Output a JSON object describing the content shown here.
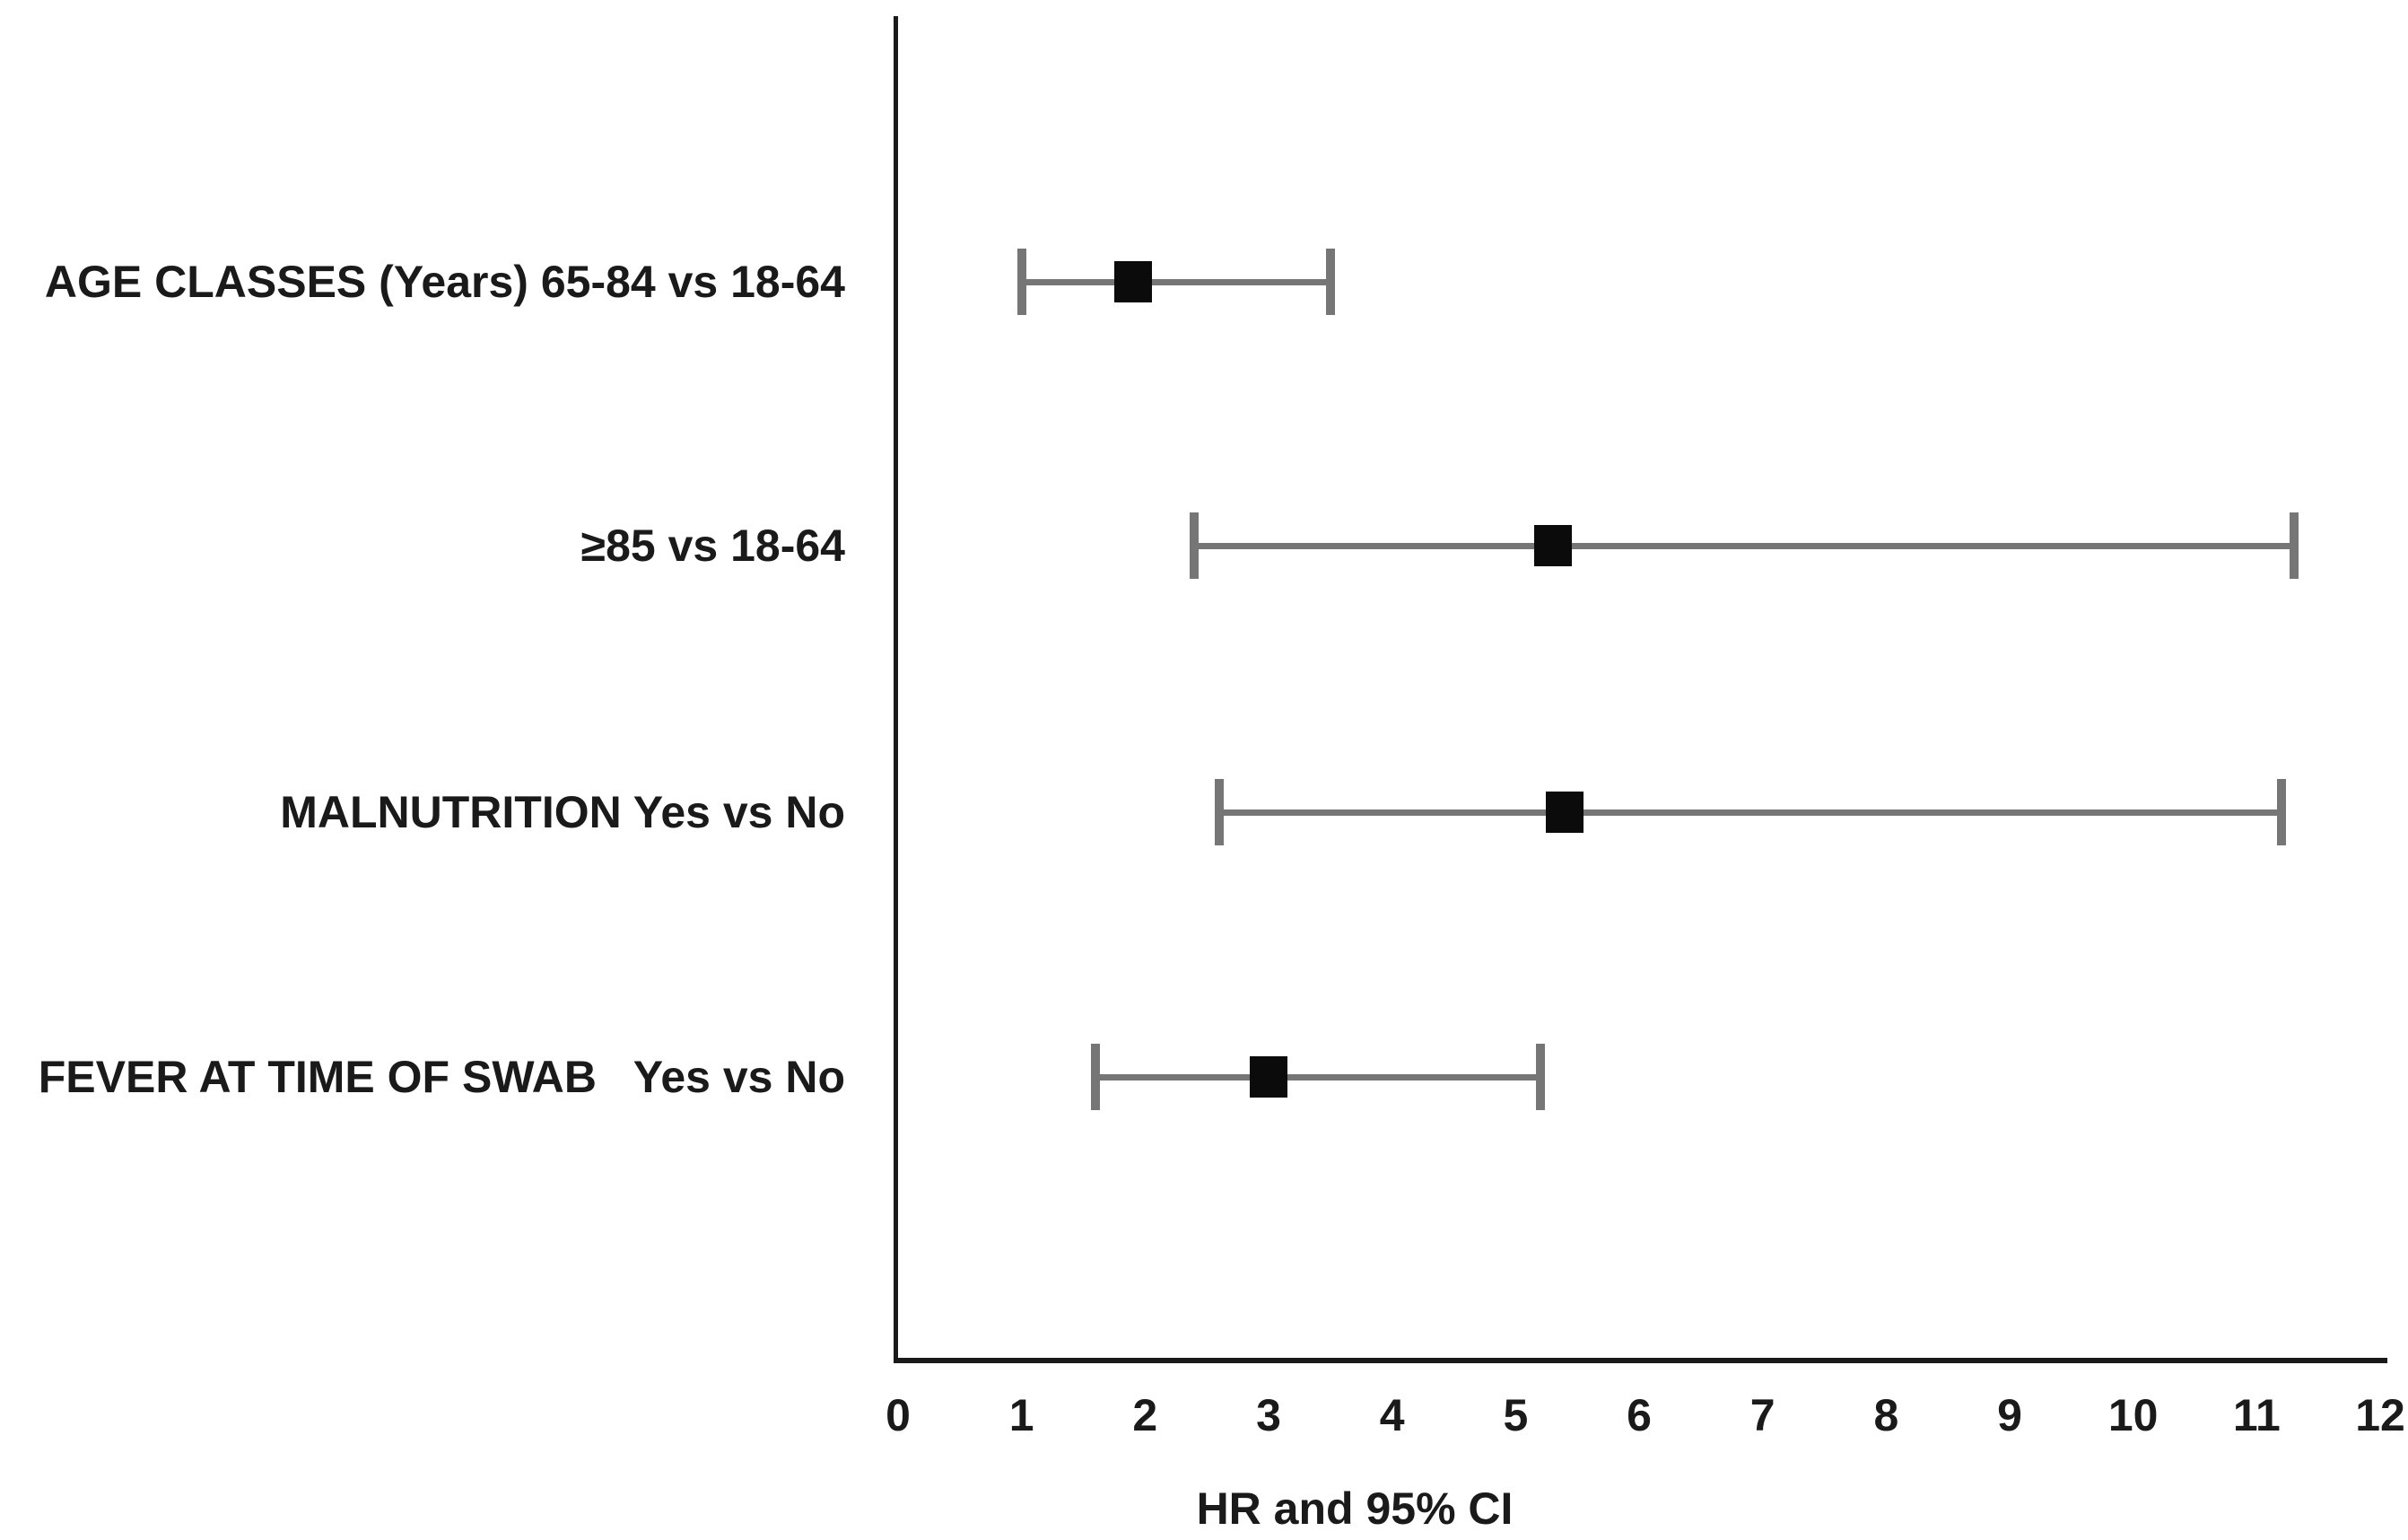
{
  "figure": {
    "background_color": "#ffffff",
    "text_color": "#1a1a1a"
  },
  "chart_data": {
    "type": "scatter",
    "subtype": "forest-plot",
    "title": "",
    "xlabel": "HR and 95% CI",
    "ylabel": "",
    "xlim": [
      0,
      12
    ],
    "xticks": [
      "0",
      "1",
      "2",
      "3",
      "4",
      "5",
      "6",
      "7",
      "8",
      "9",
      "10",
      "11",
      "12"
    ],
    "grid": false,
    "legend": "none",
    "marker_shape": "filled-square",
    "marker_color": "#0b0b0b",
    "error_bar_color": "#767676",
    "axis_color": "#1a1a1a",
    "rows": [
      {
        "label": "AGE CLASSES (Years) 65-84 vs 18-64",
        "hr": 1.9,
        "ci_low": 1.0,
        "ci_high": 3.5
      },
      {
        "label": "≥85 vs 18-64",
        "hr": 5.3,
        "ci_low": 2.4,
        "ci_high": 11.3
      },
      {
        "label": "MALNUTRITION Yes vs No",
        "hr": 5.4,
        "ci_low": 2.6,
        "ci_high": 11.2
      },
      {
        "label": "FEVER AT TIME OF SWAB   Yes vs No",
        "hr": 3.0,
        "ci_low": 1.6,
        "ci_high": 5.2
      }
    ]
  }
}
